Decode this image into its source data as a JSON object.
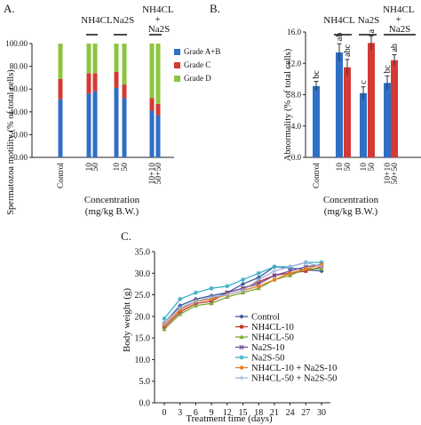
{
  "chart_data": [
    {
      "panel": "A.",
      "type": "bar",
      "stacked": true,
      "ylabel": "Spermatozoa motility (% of total cells)",
      "xlabel": "Concentration",
      "xlabel_unit": "(mg/kg B.W.)",
      "ylim": [
        0,
        100
      ],
      "yticks": [
        "0.00",
        "20.00",
        "40.00",
        "60.00",
        "80.00",
        "100.00"
      ],
      "categories": [
        "Control",
        "10",
        "50",
        "10",
        "50",
        "10+10",
        "50+50"
      ],
      "group_labels": [
        "NH4CL",
        "Na2S",
        "NH4CL + Na2S"
      ],
      "legend_position": "right",
      "series": [
        {
          "name": "Grade A+B",
          "color": "#2f6fc4",
          "values": [
            51,
            56,
            58,
            61,
            52,
            41,
            37
          ]
        },
        {
          "name": "Grade C",
          "color": "#d43a34",
          "values": [
            18,
            18,
            16,
            14,
            12,
            11,
            10
          ]
        },
        {
          "name": "Grade D",
          "color": "#8cc63f",
          "values": [
            31,
            26,
            26,
            25,
            36,
            48,
            53
          ]
        }
      ]
    },
    {
      "panel": "B.",
      "type": "bar",
      "ylabel": "Abnormality (% of total cells)",
      "xlabel": "Concentration",
      "xlabel_unit": "(mg/kg B.W.)",
      "ylim": [
        0,
        16
      ],
      "yticks": [
        "0.0",
        "4.0",
        "8.0",
        "12.0",
        "16.0"
      ],
      "categories": [
        "Control",
        "10",
        "50",
        "10",
        "50",
        "10+10",
        "50+50"
      ],
      "group_labels": [
        "NH4CL",
        "Na2S",
        "NH4CL + Na2S"
      ],
      "values": [
        9.1,
        13.4,
        11.5,
        8.2,
        14.6,
        9.5,
        12.4
      ],
      "errors": [
        0.6,
        1.1,
        1.0,
        0.8,
        0.9,
        0.9,
        0.7
      ],
      "letters": [
        "bc",
        "ab",
        "abc",
        "c",
        "a",
        "bc",
        "ab"
      ],
      "colors": [
        "#2f6fc4",
        "#2f6fc4",
        "#d43a34",
        "#2f6fc4",
        "#d43a34",
        "#2f6fc4",
        "#d43a34"
      ]
    },
    {
      "panel": "C.",
      "type": "line",
      "ylabel": "Body weight (g)",
      "xlabel": "Treatment time (days)",
      "xlim": [
        0,
        30
      ],
      "ylim": [
        0,
        35
      ],
      "x": [
        0,
        3,
        6,
        9,
        12,
        15,
        18,
        21,
        24,
        27,
        30
      ],
      "legend_position": "bottom-center",
      "series": [
        {
          "name": "Control",
          "color": "#3a5a9a",
          "marker": "diamond",
          "values": [
            18.5,
            22.5,
            24.0,
            24.8,
            25.5,
            27.5,
            29.0,
            31.5,
            31.2,
            30.8,
            30.5
          ]
        },
        {
          "name": "NH4CL-10",
          "color": "#c0392b",
          "marker": "square",
          "values": [
            17.5,
            21.0,
            23.0,
            23.5,
            25.5,
            26.5,
            28.0,
            29.5,
            30.0,
            30.5,
            31.5
          ]
        },
        {
          "name": "NH4CL-50",
          "color": "#7aa83a",
          "marker": "triangle",
          "values": [
            17.0,
            20.5,
            22.5,
            23.0,
            24.5,
            25.5,
            26.5,
            28.5,
            29.5,
            31.0,
            31.0
          ]
        },
        {
          "name": "Na2S-10",
          "color": "#6f4e9c",
          "marker": "x",
          "values": [
            18.0,
            21.5,
            23.5,
            24.0,
            25.5,
            26.5,
            27.5,
            29.5,
            30.5,
            31.5,
            32.0
          ]
        },
        {
          "name": "Na2S-50",
          "color": "#3bb1c9",
          "marker": "star",
          "values": [
            19.5,
            24.0,
            25.5,
            26.5,
            27.0,
            28.5,
            30.0,
            31.5,
            31.5,
            32.5,
            32.5
          ]
        },
        {
          "name": "NH4CL-10 + Na2S-10",
          "color": "#e67e22",
          "marker": "circle",
          "values": [
            18.0,
            21.5,
            23.5,
            24.0,
            25.0,
            26.0,
            27.0,
            28.5,
            30.0,
            31.0,
            32.0
          ]
        },
        {
          "name": "NH4CL-50 + Na2S-50",
          "color": "#9fb3dc",
          "marker": "plus",
          "values": [
            18.5,
            22.0,
            23.5,
            24.5,
            25.0,
            26.0,
            28.5,
            30.5,
            31.5,
            32.5,
            31.5
          ]
        }
      ]
    }
  ]
}
